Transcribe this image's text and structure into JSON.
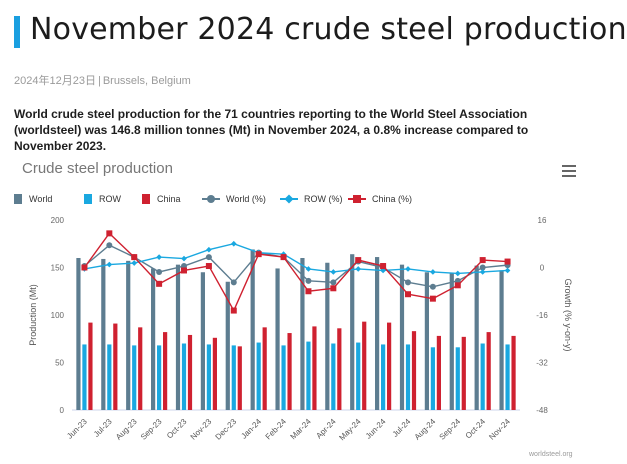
{
  "header": {
    "title": "November 2024 crude steel production",
    "date": "2024年12月23日",
    "location": "Brussels, Belgium"
  },
  "lead": "World crude steel production for the 71 countries reporting to the World Steel Association (worldsteel) was 146.8 million tonnes (Mt) in November 2024, a 0.8% increase compared to November 2023.",
  "chart_title": "Crude steel production",
  "menu_icon": "hamburger-menu-icon",
  "credit": "worldsteel.org",
  "chart_data": {
    "type": "bar",
    "categories": [
      "Jun-23",
      "Jul-23",
      "Aug-23",
      "Sep-23",
      "Oct-23",
      "Nov-23",
      "Dec-23",
      "Jan-24",
      "Feb-24",
      "Mar-24",
      "Apr-24",
      "May-24",
      "Jun-24",
      "Jul-24",
      "Aug-24",
      "Sep-24",
      "Oct-24",
      "Nov-24"
    ],
    "series": [
      {
        "name": "World",
        "kind": "bar",
        "axis": "left",
        "color": "#5d7d90",
        "values": [
          160,
          159,
          157,
          149,
          153,
          145,
          135,
          169,
          149,
          160,
          155,
          164,
          161,
          153,
          145,
          144,
          152,
          147
        ]
      },
      {
        "name": "ROW",
        "kind": "bar",
        "axis": "left",
        "color": "#1aa8e0",
        "values": [
          69,
          69,
          68,
          68,
          70,
          69,
          68,
          71,
          68,
          72,
          70,
          71,
          69,
          69,
          66,
          66,
          70,
          69
        ]
      },
      {
        "name": "China",
        "kind": "bar",
        "axis": "left",
        "color": "#cf2130",
        "values": [
          92,
          91,
          87,
          82,
          79,
          76,
          67,
          87,
          81,
          88,
          86,
          93,
          92,
          83,
          78,
          77,
          82,
          78
        ]
      },
      {
        "name": "World (%)",
        "kind": "line",
        "axis": "right",
        "color": "#5d7d90",
        "values": [
          0.5,
          7.5,
          3.5,
          -1.5,
          0.5,
          3.5,
          -5,
          5,
          3.5,
          -4.5,
          -5,
          2,
          0,
          -5,
          -6.5,
          -4.5,
          0,
          0.8
        ]
      },
      {
        "name": "ROW (%)",
        "kind": "line",
        "axis": "right",
        "color": "#1aa8e0",
        "values": [
          -0.5,
          1,
          1.5,
          3.5,
          3,
          6,
          8,
          5,
          4.5,
          -0.5,
          -1.5,
          -0.5,
          -1,
          -0.5,
          -1.5,
          -2,
          -1.5,
          -1
        ]
      },
      {
        "name": "China (%)",
        "kind": "line",
        "axis": "right",
        "color": "#cf2130",
        "values": [
          0,
          11.5,
          3.5,
          -5.5,
          -1,
          0.5,
          -14.5,
          4.5,
          3.5,
          -8,
          -7,
          2.5,
          0.5,
          -9,
          -10.5,
          -6,
          2.5,
          2
        ]
      }
    ],
    "ylabel": "Production (Mt)",
    "ylim": [
      0,
      200
    ],
    "yticks": [
      0,
      50,
      100,
      150,
      200
    ],
    "y2label": "Growth (% y-on-y)",
    "y2lim": [
      -48,
      16
    ],
    "y2ticks": [
      -48,
      -32,
      -16,
      0,
      16
    ],
    "legend_position": "top-left",
    "grid": false
  }
}
